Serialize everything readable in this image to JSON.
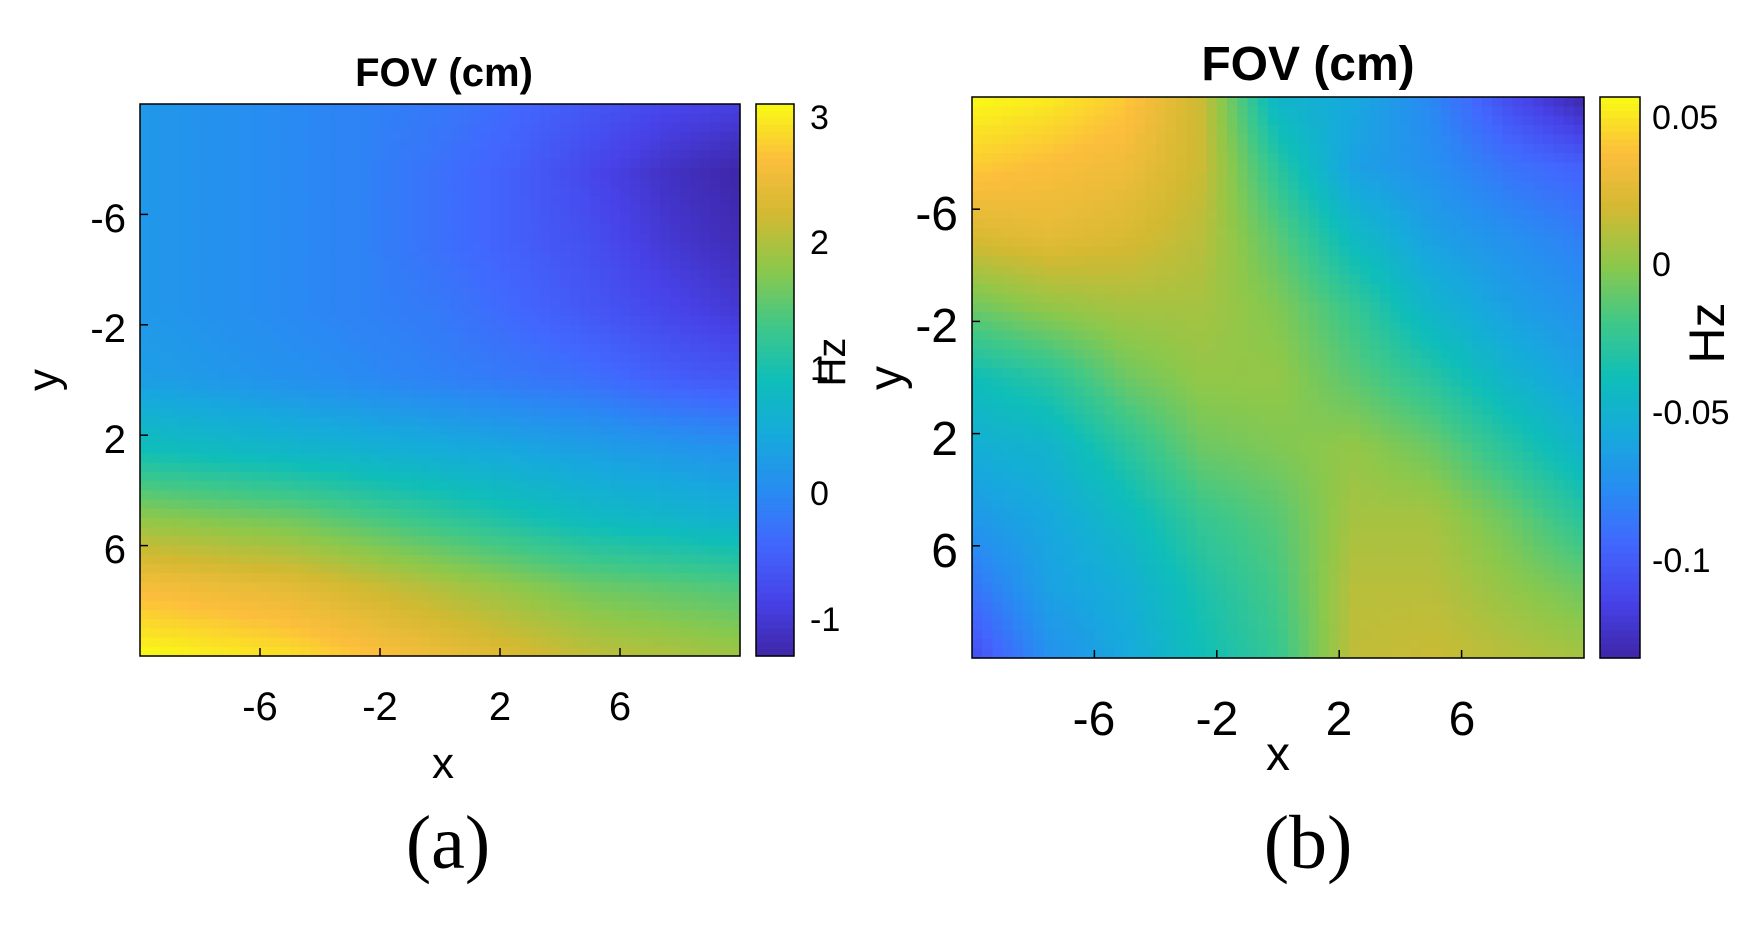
{
  "chart_data": [
    {
      "type": "heatmap",
      "title": "FOV (cm)",
      "xlabel": "x",
      "ylabel": "y",
      "panel_label": "(a)",
      "x_ticks": [
        -6,
        -2,
        2,
        6
      ],
      "y_ticks": [
        -6,
        -2,
        2,
        6
      ],
      "xlim": [
        -10,
        10
      ],
      "ylim": [
        -10,
        10
      ],
      "y_direction": "reverse",
      "colorbar": {
        "label": "Hz",
        "ticks": [
          -1,
          0,
          1,
          2,
          3
        ],
        "range": [
          -1.3,
          3.1
        ],
        "colormap": "parula"
      },
      "grid": "x,y",
      "values": [
        [
          0.2,
          0.1,
          0.0,
          -0.1,
          -0.2,
          -0.4,
          -0.6,
          -0.8,
          -0.9
        ],
        [
          0.2,
          0.1,
          0.0,
          -0.1,
          -0.3,
          -0.5,
          -0.8,
          -1.1,
          -1.3
        ],
        [
          0.2,
          0.1,
          0.0,
          -0.1,
          -0.3,
          -0.5,
          -0.7,
          -1.0,
          -1.2
        ],
        [
          0.2,
          0.1,
          0.0,
          -0.1,
          -0.2,
          -0.4,
          -0.6,
          -0.8,
          -1.0
        ],
        [
          0.3,
          0.2,
          0.1,
          0.0,
          -0.1,
          -0.2,
          -0.3,
          -0.5,
          -0.6
        ],
        [
          0.9,
          0.8,
          0.7,
          0.6,
          0.5,
          0.4,
          0.3,
          0.2,
          0.1
        ],
        [
          1.8,
          1.7,
          1.6,
          1.4,
          1.2,
          1.0,
          0.8,
          0.7,
          0.6
        ],
        [
          2.6,
          2.5,
          2.4,
          2.2,
          2.0,
          1.8,
          1.6,
          1.5,
          1.4
        ],
        [
          3.1,
          3.0,
          2.9,
          2.7,
          2.5,
          2.3,
          2.1,
          2.0,
          1.9
        ]
      ]
    },
    {
      "type": "heatmap",
      "title": "FOV (cm)",
      "xlabel": "x",
      "ylabel": "y",
      "panel_label": "(b)",
      "x_ticks": [
        -6,
        -2,
        2,
        6
      ],
      "y_ticks": [
        -6,
        -2,
        2,
        6
      ],
      "xlim": [
        -10,
        10
      ],
      "ylim": [
        -10,
        10
      ],
      "y_direction": "reverse",
      "colorbar": {
        "label": "Hz",
        "ticks": [
          -0.1,
          -0.05,
          0,
          0.05
        ],
        "range": [
          -0.135,
          0.055
        ],
        "colormap": "parula"
      },
      "grid": "x,y",
      "values": [
        [
          0.055,
          0.05,
          0.04,
          0.015,
          -0.05,
          -0.06,
          -0.08,
          -0.11,
          -0.135
        ],
        [
          0.04,
          0.035,
          0.03,
          0.015,
          -0.03,
          -0.065,
          -0.075,
          -0.09,
          -0.1
        ],
        [
          0.02,
          0.025,
          0.02,
          0.01,
          -0.015,
          -0.045,
          -0.065,
          -0.075,
          -0.085
        ],
        [
          -0.01,
          0.0,
          0.005,
          0.005,
          -0.005,
          -0.025,
          -0.05,
          -0.065,
          -0.075
        ],
        [
          -0.04,
          -0.03,
          -0.01,
          0.0,
          0.0,
          -0.015,
          -0.03,
          -0.05,
          -0.065
        ],
        [
          -0.055,
          -0.05,
          -0.03,
          -0.01,
          -0.005,
          0.0,
          -0.01,
          -0.03,
          -0.05
        ],
        [
          -0.07,
          -0.06,
          -0.045,
          -0.025,
          -0.015,
          0.005,
          0.005,
          -0.01,
          -0.03
        ],
        [
          -0.09,
          -0.065,
          -0.055,
          -0.035,
          -0.02,
          0.01,
          0.01,
          0.0,
          -0.01
        ],
        [
          -0.11,
          -0.075,
          -0.06,
          -0.04,
          -0.025,
          0.012,
          0.015,
          0.01,
          0.005
        ]
      ]
    }
  ]
}
